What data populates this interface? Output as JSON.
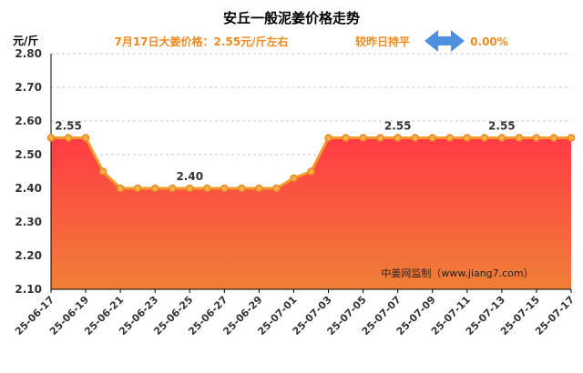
{
  "header": {
    "title": "安丘一般泥姜价格走势",
    "price_text": "7月17日大姜价格：2.55元/斤左右",
    "change_text": "较昨日持平",
    "change_pct": "0.00%",
    "unit": "元/斤",
    "watermark": "中姜网监制（www.jiang7.com）"
  },
  "colors": {
    "accent": "#f08a1c",
    "line": "#f39a2a",
    "fill_top": "#ff3b44",
    "fill_bottom": "#f07f36",
    "arrow": "#4f8fe0",
    "grid": "#c8c8c8"
  },
  "chart_data": {
    "type": "area",
    "title": "安丘一般泥姜价格走势",
    "ylabel": "元/斤",
    "xlabel": "",
    "ylim": [
      2.1,
      2.8
    ],
    "yticks": [
      "2.10",
      "2.20",
      "2.30",
      "2.40",
      "2.50",
      "2.60",
      "2.70",
      "2.80"
    ],
    "x": [
      "25-06-17",
      "25-06-18",
      "25-06-19",
      "25-06-20",
      "25-06-21",
      "25-06-22",
      "25-06-23",
      "25-06-24",
      "25-06-25",
      "25-06-26",
      "25-06-27",
      "25-06-28",
      "25-06-29",
      "25-06-30",
      "25-07-01",
      "25-07-02",
      "25-07-03",
      "25-07-04",
      "25-07-05",
      "25-07-06",
      "25-07-07",
      "25-07-08",
      "25-07-09",
      "25-07-10",
      "25-07-11",
      "25-07-12",
      "25-07-13",
      "25-07-14",
      "25-07-15",
      "25-07-16",
      "25-07-17"
    ],
    "xtick_labels": [
      "25-06-17",
      "25-06-19",
      "25-06-21",
      "25-06-23",
      "25-06-25",
      "25-06-27",
      "25-06-29",
      "25-07-01",
      "25-07-03",
      "25-07-05",
      "25-07-07",
      "25-07-09",
      "25-07-11",
      "25-07-13",
      "25-07-15",
      "25-07-17"
    ],
    "values": [
      2.55,
      2.55,
      2.55,
      2.45,
      2.4,
      2.4,
      2.4,
      2.4,
      2.4,
      2.4,
      2.4,
      2.4,
      2.4,
      2.4,
      2.43,
      2.45,
      2.55,
      2.55,
      2.55,
      2.55,
      2.55,
      2.55,
      2.55,
      2.55,
      2.55,
      2.55,
      2.55,
      2.55,
      2.55,
      2.55,
      2.55
    ],
    "data_labels": [
      {
        "date": "25-06-18",
        "text": "2.55"
      },
      {
        "date": "25-06-25",
        "text": "2.40"
      },
      {
        "date": "25-07-07",
        "text": "2.55"
      },
      {
        "date": "25-07-13",
        "text": "2.55"
      }
    ],
    "grid": true
  }
}
